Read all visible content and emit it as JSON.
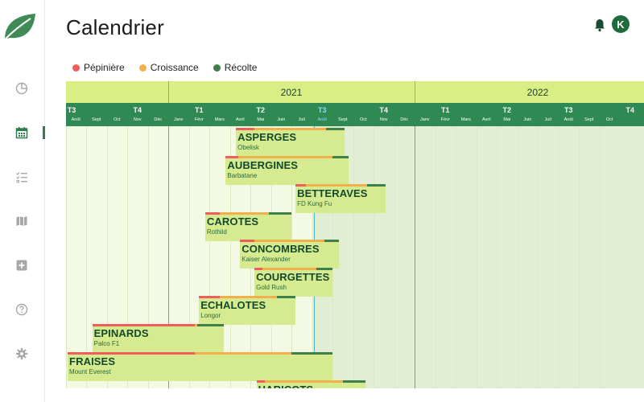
{
  "app": {
    "title": "Calendrier",
    "avatar_initial": "K",
    "brand_color": "#2e8a52"
  },
  "sidebar": {
    "items": [
      {
        "name": "dashboard",
        "icon": "pie-chart-icon",
        "active": false
      },
      {
        "name": "calendar",
        "icon": "calendar-icon",
        "active": true
      },
      {
        "name": "tasks",
        "icon": "checklist-icon",
        "active": false
      },
      {
        "name": "map",
        "icon": "map-icon",
        "active": false
      },
      {
        "name": "add",
        "icon": "plus-square-icon",
        "active": false
      },
      {
        "name": "help",
        "icon": "help-circle-icon",
        "active": false
      },
      {
        "name": "settings",
        "icon": "gear-icon",
        "active": false
      }
    ]
  },
  "legend": [
    {
      "label": "Pépinière",
      "color": "#ef5d5d"
    },
    {
      "label": "Croissance",
      "color": "#f2b04c"
    },
    {
      "label": "Récolte",
      "color": "#3f7f4a"
    }
  ],
  "timeline": {
    "years": [
      "2021",
      "2022"
    ],
    "quarters": [
      "T3",
      "T4",
      "T1",
      "T2",
      "T3",
      "T4",
      "T1",
      "T2",
      "T3",
      "T4"
    ],
    "current_quarter": "T3",
    "months": [
      "Août",
      "Sept",
      "Oct",
      "Nov",
      "Déc",
      "Janv",
      "Févr",
      "Mars",
      "Avril",
      "Mai",
      "Juin",
      "Juil",
      "Août",
      "Sept",
      "Oct",
      "Nov",
      "Déc",
      "Janv",
      "Févr",
      "Mars",
      "Avril",
      "Mai",
      "Juin",
      "Juil",
      "Août",
      "Sept",
      "Oct"
    ],
    "current_month": "Août"
  },
  "crops": [
    {
      "name": "ASPERGES",
      "variety": "Obelisk"
    },
    {
      "name": "AUBERGINES",
      "variety": "Barbatane"
    },
    {
      "name": "BETTERAVES",
      "variety": "FD Kung Fu"
    },
    {
      "name": "CAROTES",
      "variety": "Rothild"
    },
    {
      "name": "CONCOMBRES",
      "variety": "Kaiser Alexander"
    },
    {
      "name": "COURGETTES",
      "variety": "Gold Rush"
    },
    {
      "name": "ECHALOTES",
      "variety": "Longor"
    },
    {
      "name": "EPINARDS",
      "variety": "Palco F1"
    },
    {
      "name": "FRAISES",
      "variety": "Mount Everest"
    },
    {
      "name": "HARICOTS",
      "variety": ""
    }
  ]
}
